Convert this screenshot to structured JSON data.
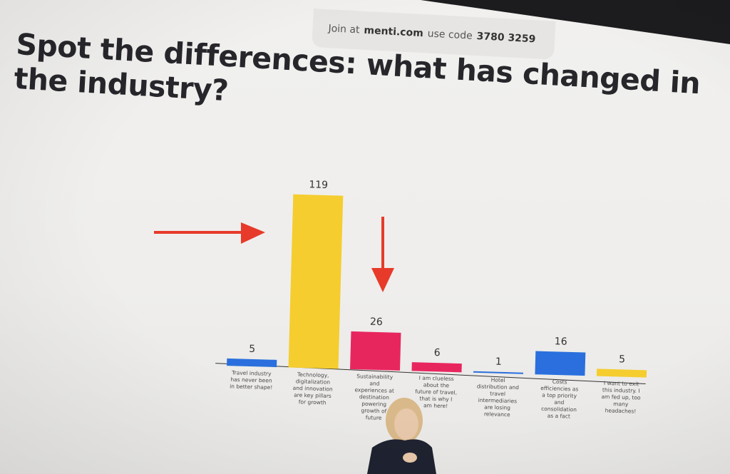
{
  "join": {
    "join_at": "Join at",
    "site": "menti.com",
    "use_code": "use code",
    "code": "3780 3259"
  },
  "title": "Spot the differences: what has changed in the industry?",
  "colors": {
    "blue": "#2a6fdd",
    "yellow": "#f5cd2f",
    "pink": "#e8265e",
    "annotation_red": "#e73a2a"
  },
  "chart_data": {
    "type": "bar",
    "categories": [
      "Travel industry has never been in better shape!",
      "Technology, digitalization and innovation are key pillars for growth",
      "Sustainability and experiences at destination powering growth of future",
      "I am clueless about the future of travel, that is why I am here!",
      "Hotel distribution and travel intermediaries are losing relevance",
      "Costs efficiencies as a top priority and consolidation as a fact",
      "I want to exit this industry. I am fed up, too many headaches!"
    ],
    "category_lines": [
      [
        "Travel industry",
        "has never been",
        "in better shape!"
      ],
      [
        "Technology,",
        "digitalization",
        "and innovation",
        "are key pillars",
        "for growth"
      ],
      [
        "Sustainability",
        "and",
        "experiences at",
        "destination",
        "powering",
        "growth of",
        "future"
      ],
      [
        "I am clueless",
        "about the",
        "future of travel,",
        "that is why I",
        "am here!"
      ],
      [
        "Hotel",
        "distribution and",
        "travel",
        "intermediaries",
        "are losing",
        "relevance"
      ],
      [
        "Costs",
        "efficiencies as",
        "a top priority",
        "and",
        "consolidation",
        "as a fact"
      ],
      [
        "I want to exit",
        "this industry. I",
        "am fed up, too",
        "many",
        "headaches!"
      ]
    ],
    "values": [
      5,
      119,
      26,
      6,
      1,
      16,
      5
    ],
    "bar_colors": [
      "#2a6fdd",
      "#f5cd2f",
      "#e8265e",
      "#e8265e",
      "#2a6fdd",
      "#2a6fdd",
      "#f5cd2f"
    ],
    "ylim": [
      0,
      119
    ],
    "grid": false,
    "annotations": [
      "red arrow pointing right at second bar",
      "red arrow pointing down at third bar"
    ]
  }
}
